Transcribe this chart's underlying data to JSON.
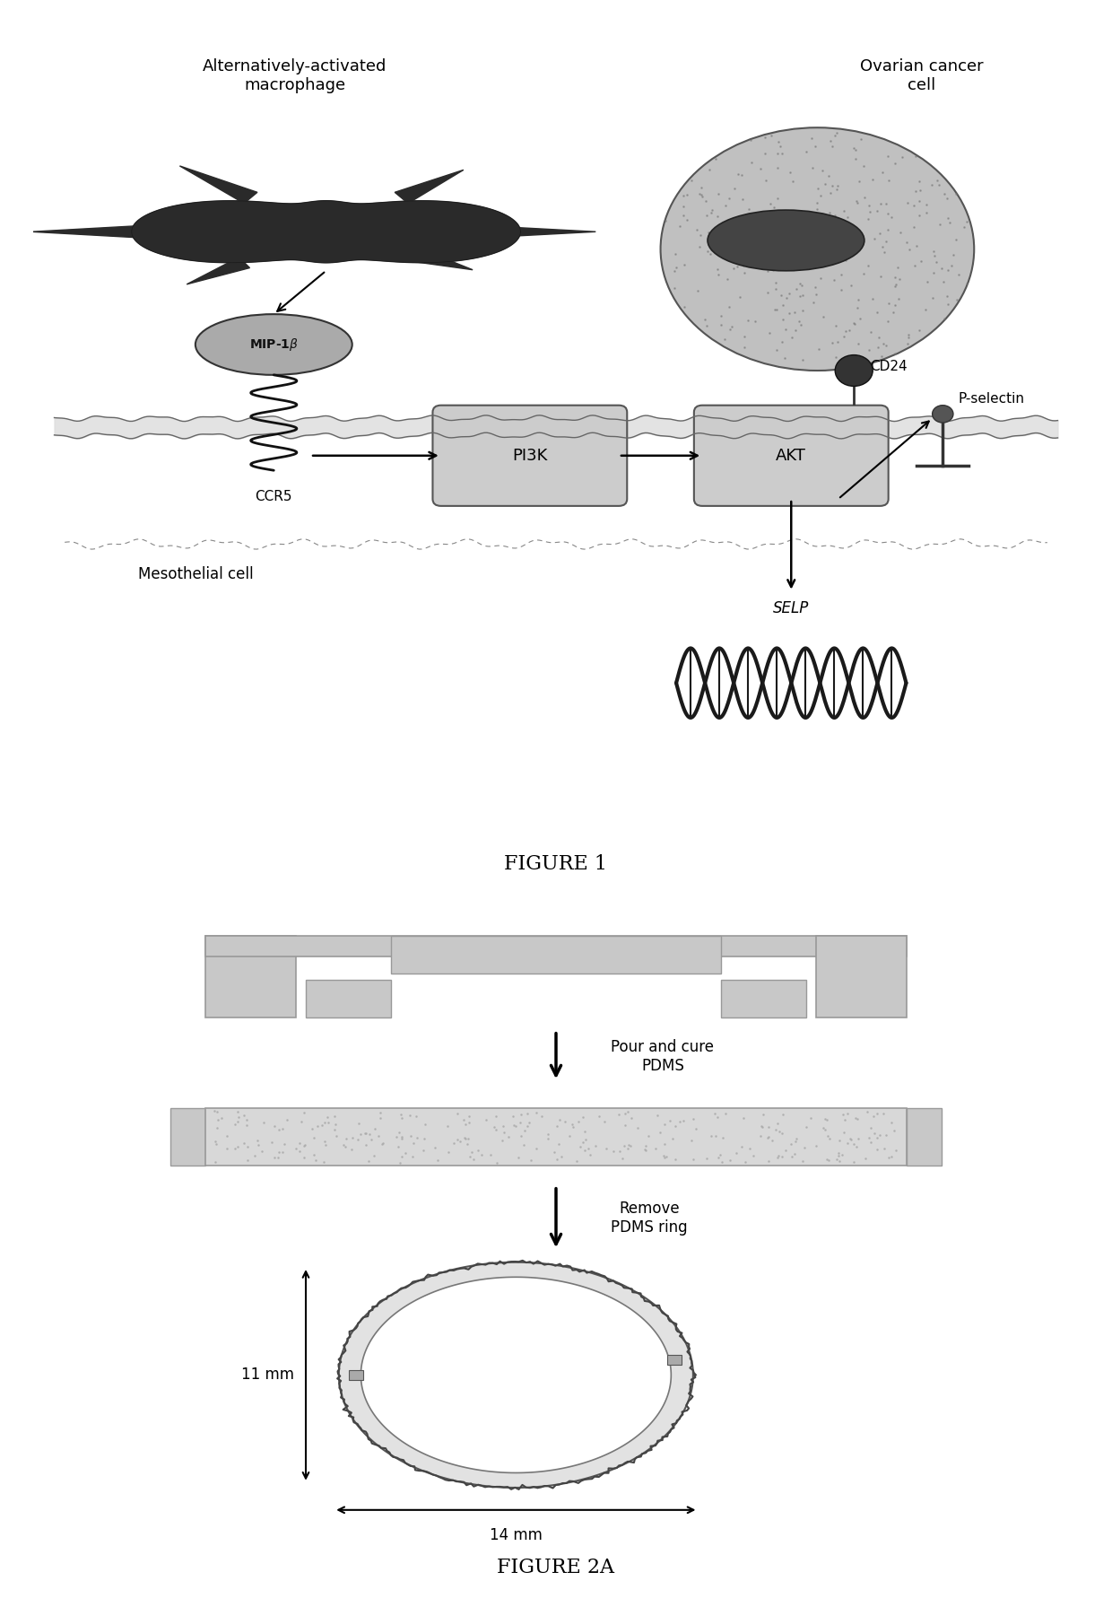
{
  "bg_color": "#ffffff",
  "fig1_title": "FIGURE 1",
  "fig2_title": "FIGURE 2A",
  "label_macrophage": "Alternatively-activated\nmacrophage",
  "label_cancer": "Ovarian cancer\ncell",
  "label_mip": "MIP-1β",
  "label_ccr5": "CCR5",
  "label_pi3k": "PI3K",
  "label_akt": "AKT",
  "label_selp": "SELP",
  "label_cd24": "CD24",
  "label_pselectin": "P-selectin",
  "label_mesothelial": "Mesothelial cell",
  "arrow1_text": "Pour and cure\nPDMS",
  "arrow2_text": "Remove\nPDMS ring",
  "dim_11mm": "11 mm",
  "dim_14mm": "14 mm",
  "gray_light": "#c8c8c8",
  "gray_medium": "#999999",
  "gray_dark": "#404040",
  "black": "#000000",
  "white": "#ffffff",
  "dna_color": "#1a1a1a",
  "box_fill": "#cccccc",
  "cell_fill": "#bbbbbb",
  "nucleus_fill": "#555555",
  "mip_fill": "#aaaaaa",
  "membrane_color": "#888888"
}
